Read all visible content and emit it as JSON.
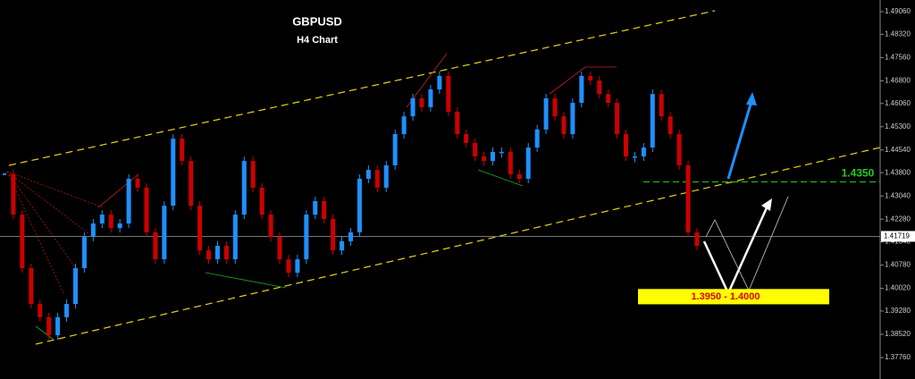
{
  "chart_data": {
    "type": "candlestick",
    "title": "GBPUSD",
    "subtitle": "H4 Chart",
    "series": [
      {
        "name": "GBPUSD",
        "up_color": "#1e90ff",
        "down_color": "#cc0000",
        "values": [
          1.4375,
          1.4243,
          1.4068,
          1.3951,
          1.3908,
          1.3849,
          1.3908,
          1.3951,
          1.4068,
          1.417,
          1.4214,
          1.4243,
          1.4199,
          1.4214,
          1.436,
          1.4331,
          1.4185,
          1.4097,
          1.4272,
          1.4491,
          1.4418,
          1.4272,
          1.4126,
          1.4097,
          1.4141,
          1.4097,
          1.4243,
          1.4418,
          1.4331,
          1.4243,
          1.417,
          1.4097,
          1.4053,
          1.4097,
          1.4243,
          1.4287,
          1.4229,
          1.4126,
          1.4156,
          1.4185,
          1.436,
          1.4389,
          1.4331,
          1.4404,
          1.4506,
          1.4564,
          1.4623,
          1.4594,
          1.4652,
          1.4696,
          1.4579,
          1.4506,
          1.4477,
          1.4433,
          1.4418,
          1.4448,
          1.4448,
          1.4375,
          1.436,
          1.4462,
          1.4521,
          1.4623,
          1.4564,
          1.4506,
          1.4608,
          1.4696,
          1.4681,
          1.4637,
          1.4608,
          1.4506,
          1.4433,
          1.4433,
          1.4462,
          1.4637,
          1.4564,
          1.4506,
          1.4404,
          1.4185,
          1.4141
        ]
      }
    ],
    "ylim": [
      1.3706,
      1.4944
    ],
    "yticks": [
      {
        "value": 1.4906,
        "label": "1.49060"
      },
      {
        "value": 1.4832,
        "label": "1.48320"
      },
      {
        "value": 1.4756,
        "label": "1.47560"
      },
      {
        "value": 1.468,
        "label": "1.46800"
      },
      {
        "value": 1.4606,
        "label": "1.46060"
      },
      {
        "value": 1.453,
        "label": "1.45300"
      },
      {
        "value": 1.4454,
        "label": "1.44540"
      },
      {
        "value": 1.438,
        "label": "1.43800"
      },
      {
        "value": 1.4304,
        "label": "1.43040"
      },
      {
        "value": 1.4228,
        "label": "1.42280"
      },
      {
        "value": 1.4154,
        "label": "1.41540"
      },
      {
        "value": 1.4078,
        "label": "1.40780"
      },
      {
        "value": 1.4002,
        "label": "1.40020"
      },
      {
        "value": 1.3928,
        "label": "1.39280"
      },
      {
        "value": 1.3852,
        "label": "1.38520"
      },
      {
        "value": 1.3776,
        "label": "1.37760"
      }
    ],
    "current_price": 1.41719,
    "level": {
      "value": 1.435,
      "label": "1.4350",
      "color": "#22cc22"
    },
    "target_zone": {
      "values": [
        1.395,
        1.4
      ],
      "label": "1.3950 - 1.4000",
      "color": "#ffff00"
    }
  }
}
